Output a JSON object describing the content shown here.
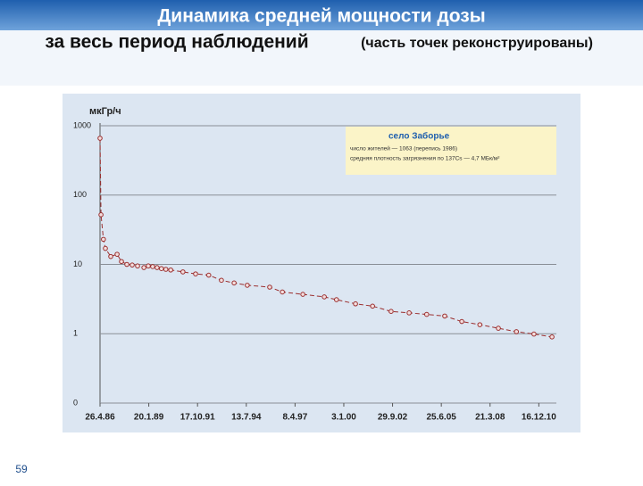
{
  "slide": {
    "title_line1": "Динамика средней мощности дозы",
    "title_line2": "за весь период наблюдений",
    "title_note": "(часть точек реконструированы)",
    "page_number": "59"
  },
  "chart_data": {
    "type": "scatter",
    "y_label": "мкГр/ч",
    "log_y": true,
    "grid": true,
    "annotation": {
      "title": "село Заборье",
      "lines": [
        "число жителей — 1063 (перепись 1986)",
        "средняя плотность загрязнения по 137Cs — 4,7 МБк/м²"
      ]
    },
    "x": [
      0,
      20,
      70,
      110,
      220,
      350,
      440,
      550,
      660,
      770,
      900,
      990,
      1080,
      1170,
      1260,
      1350,
      1450,
      1700,
      1960,
      2230,
      2490,
      2750,
      3020,
      3480,
      3740,
      4160,
      4600,
      4850,
      5240,
      5590,
      5970,
      6340,
      6700,
      7070,
      7420,
      7790,
      8170,
      8540,
      8900,
      9270
    ],
    "series": [
      {
        "name": "Заборье",
        "color": "#9b2f2f",
        "values": [
          660,
          52,
          23,
          17,
          13,
          14,
          11,
          10,
          9.8,
          9.5,
          9,
          9.5,
          9.3,
          9,
          8.7,
          8.5,
          8.3,
          7.8,
          7.3,
          7.0,
          5.9,
          5.4,
          5.0,
          4.7,
          4.0,
          3.7,
          3.4,
          3.1,
          2.7,
          2.5,
          2.1,
          2.0,
          1.9,
          1.8,
          1.5,
          1.35,
          1.2,
          1.07,
          0.99,
          0.9
        ]
      }
    ],
    "xlim": [
      0,
      9360
    ],
    "xticks": [
      {
        "value": 0,
        "label": "26.4.86"
      },
      {
        "value": 1000,
        "label": "20.1.89"
      },
      {
        "value": 2000,
        "label": "17.10.91"
      },
      {
        "value": 3000,
        "label": "13.7.94"
      },
      {
        "value": 4000,
        "label": "8.4.97"
      },
      {
        "value": 5000,
        "label": "3.1.00"
      },
      {
        "value": 6000,
        "label": "29.9.02"
      },
      {
        "value": 7000,
        "label": "25.6.05"
      },
      {
        "value": 8000,
        "label": "21.3.08"
      },
      {
        "value": 9000,
        "label": "16.12.10"
      }
    ],
    "ylim": [
      0.1,
      1000
    ],
    "yticks": [
      {
        "value": 0.1,
        "label": "0"
      },
      1,
      10,
      100,
      1000
    ]
  }
}
